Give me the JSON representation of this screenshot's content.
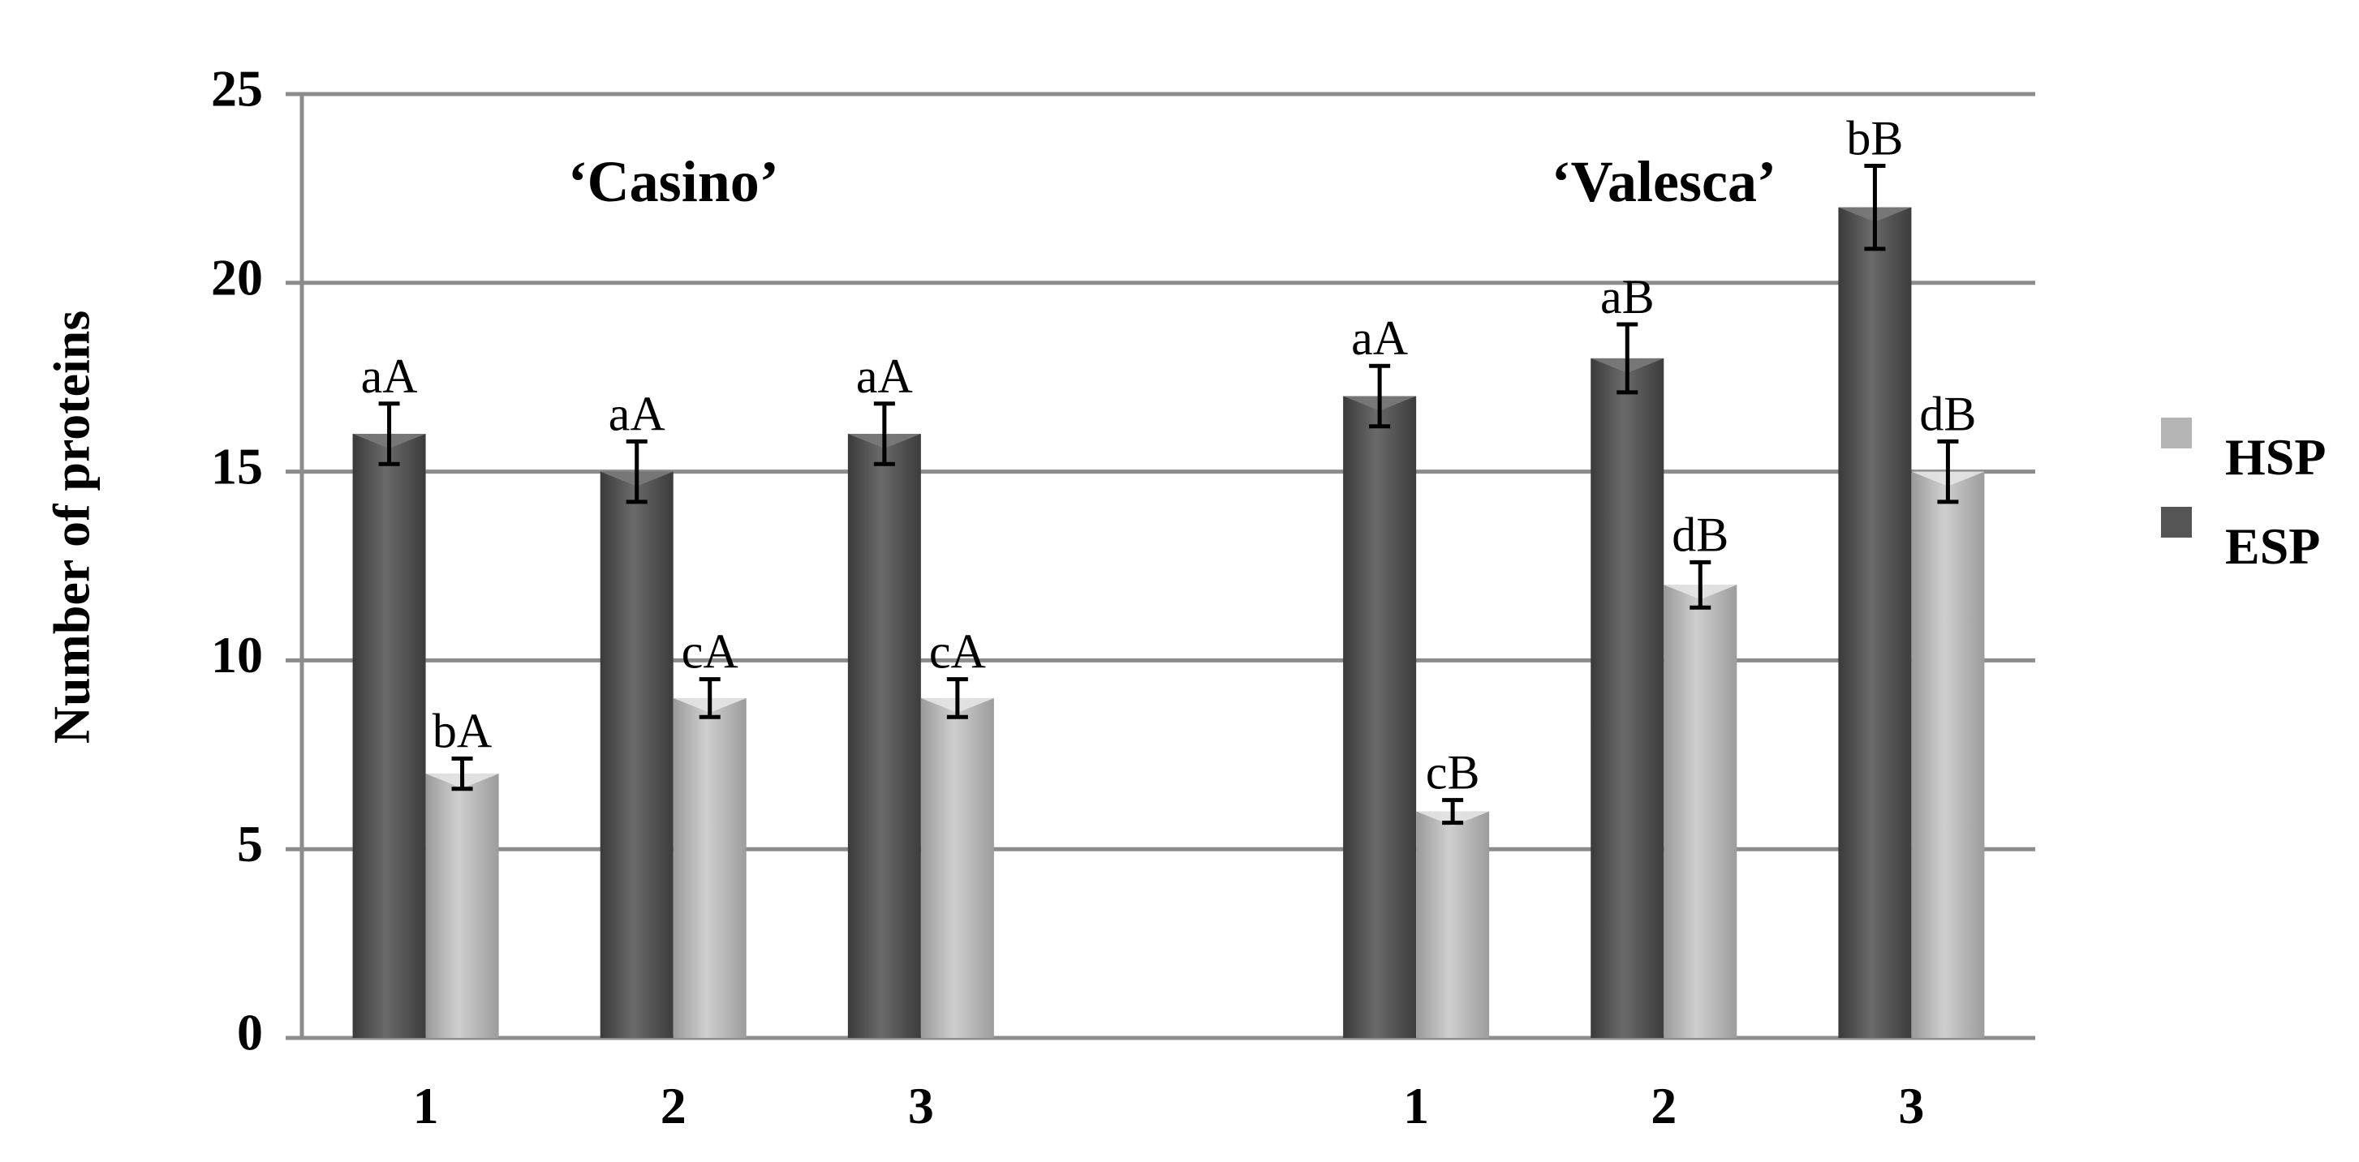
{
  "chart_data": {
    "type": "bar",
    "ylabel": "Number of proteins",
    "ylim": [
      0,
      25
    ],
    "yticks": [
      0,
      5,
      10,
      15,
      20,
      25
    ],
    "grid": true,
    "legend_position": "right",
    "colors": {
      "ESP": "#555555",
      "HSP": "#b4b4b4"
    },
    "groups": [
      {
        "label": "‘Casino’",
        "categories": [
          "1",
          "2",
          "3"
        ],
        "series": [
          {
            "name": "ESP",
            "values": [
              16,
              15,
              16
            ],
            "errors": [
              0.8,
              0.8,
              0.8
            ],
            "labels": [
              "aA",
              "aA",
              "aA"
            ]
          },
          {
            "name": "HSP",
            "values": [
              7,
              9,
              9
            ],
            "errors": [
              0.4,
              0.5,
              0.5
            ],
            "labels": [
              "bA",
              "cA",
              "cA"
            ]
          }
        ]
      },
      {
        "label": "‘Valesca’",
        "categories": [
          "1",
          "2",
          "3"
        ],
        "series": [
          {
            "name": "ESP",
            "values": [
              17,
              18,
              22
            ],
            "errors": [
              0.8,
              0.9,
              1.1
            ],
            "labels": [
              "aA",
              "aB",
              "bB"
            ]
          },
          {
            "name": "HSP",
            "values": [
              6,
              12,
              15
            ],
            "errors": [
              0.3,
              0.6,
              0.8
            ],
            "labels": [
              "cB",
              "dB",
              "dB"
            ]
          }
        ]
      }
    ],
    "legend": [
      "HSP",
      "ESP"
    ]
  }
}
